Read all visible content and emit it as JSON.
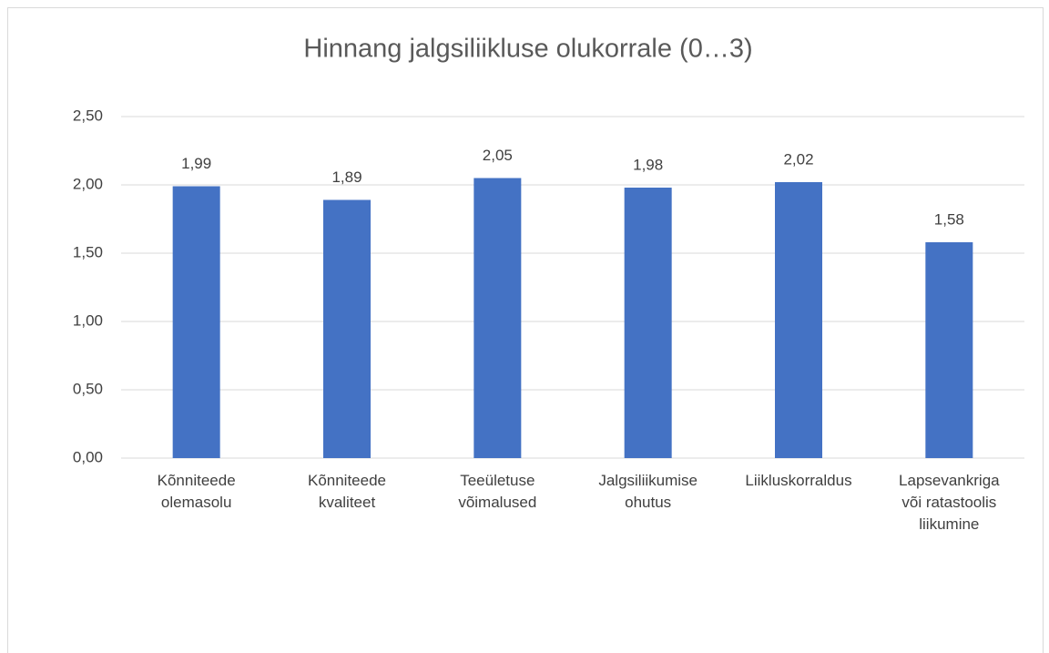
{
  "chart_data": {
    "type": "bar",
    "title": "Hinnang jalgsiliikluse olukorrale (0…3)",
    "categories": [
      "Kõnniteede olemasolu",
      "Kõnniteede kvaliteet",
      "Teeületuse võimalused",
      "Jalgsiliikumise ohutus",
      "Liikluskorraldus",
      "Lapsevankriga või ratastoolis liikumine"
    ],
    "values": [
      1.99,
      1.89,
      2.05,
      1.98,
      2.02,
      1.58
    ],
    "value_labels": [
      "1,99",
      "1,89",
      "2,05",
      "1,98",
      "2,02",
      "1,58"
    ],
    "color": "#4472c4",
    "ylim": [
      0,
      2.5
    ],
    "yticks": [
      {
        "value": 0,
        "label": "0,00"
      },
      {
        "value": 0.5,
        "label": "0,50"
      },
      {
        "value": 1,
        "label": "1,00"
      },
      {
        "value": 1.5,
        "label": "1,50"
      },
      {
        "value": 2,
        "label": "2,00"
      },
      {
        "value": 2.5,
        "label": "2,50"
      }
    ],
    "grid": true
  }
}
